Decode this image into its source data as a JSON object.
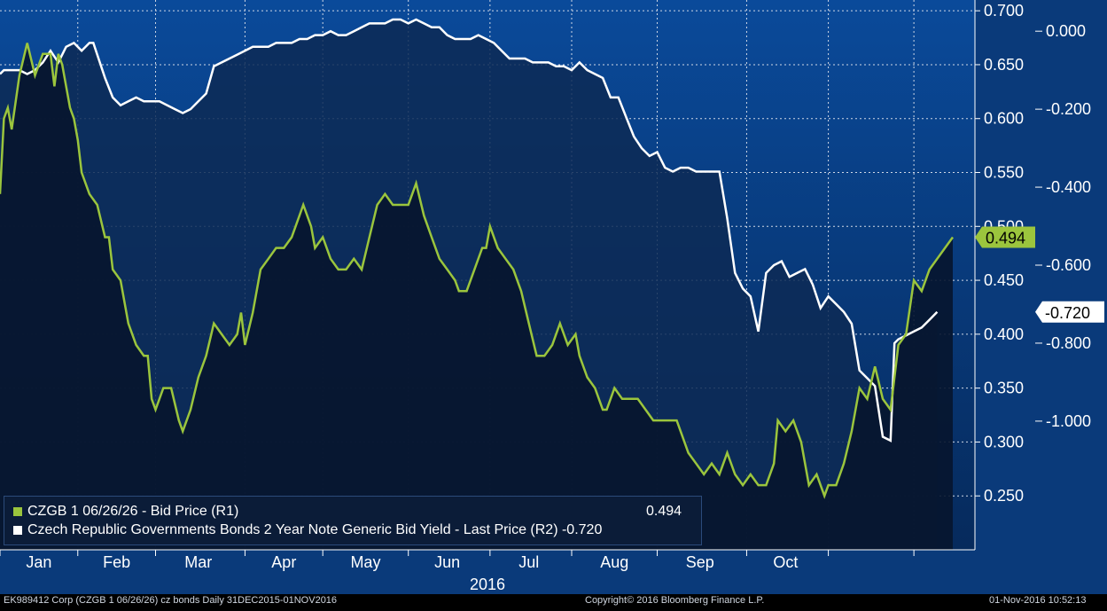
{
  "chart_data": {
    "type": "line",
    "title": "",
    "x_range": [
      "2015-12-31",
      "2016-11-01"
    ],
    "year_label": "2016",
    "months": [
      "Jan",
      "Feb",
      "Mar",
      "Apr",
      "May",
      "Jun",
      "Jul",
      "Aug",
      "Sep",
      "Oct"
    ],
    "axis_r1": {
      "ticks": [
        "0.700",
        "0.650",
        "0.600",
        "0.550",
        "0.500",
        "0.450",
        "0.400",
        "0.350",
        "0.300",
        "0.250"
      ],
      "range": [
        0.2,
        0.71
      ]
    },
    "axis_r2": {
      "ticks": [
        "0.000",
        "-0.200",
        "-0.400",
        "-0.600",
        "-0.800",
        "-1.000"
      ],
      "range": [
        -1.33,
        0.08
      ]
    },
    "grid": true,
    "legend_position": "bottom-left",
    "series": [
      {
        "name": "CZGB 1 06/26/26 - Bid Price (R1)",
        "axis": "R1",
        "color": "#9bc53d",
        "last_label": "0.494",
        "values": [
          [
            1,
            0.53
          ],
          [
            2,
            0.6
          ],
          [
            3,
            0.61
          ],
          [
            4,
            0.59
          ],
          [
            6,
            0.64
          ],
          [
            8,
            0.67
          ],
          [
            10,
            0.64
          ],
          [
            12,
            0.66
          ],
          [
            14,
            0.66
          ],
          [
            15,
            0.63
          ],
          [
            16,
            0.66
          ],
          [
            17,
            0.65
          ],
          [
            18,
            0.63
          ],
          [
            19,
            0.61
          ],
          [
            20,
            0.6
          ],
          [
            21,
            0.58
          ],
          [
            22,
            0.55
          ],
          [
            24,
            0.53
          ],
          [
            26,
            0.52
          ],
          [
            28,
            0.49
          ],
          [
            29,
            0.49
          ],
          [
            30,
            0.46
          ],
          [
            32,
            0.45
          ],
          [
            34,
            0.41
          ],
          [
            36,
            0.39
          ],
          [
            38,
            0.38
          ],
          [
            39,
            0.38
          ],
          [
            40,
            0.34
          ],
          [
            41,
            0.33
          ],
          [
            43,
            0.35
          ],
          [
            45,
            0.35
          ],
          [
            47,
            0.32
          ],
          [
            48,
            0.31
          ],
          [
            50,
            0.33
          ],
          [
            52,
            0.36
          ],
          [
            54,
            0.38
          ],
          [
            56,
            0.41
          ],
          [
            58,
            0.4
          ],
          [
            60,
            0.39
          ],
          [
            62,
            0.4
          ],
          [
            63,
            0.42
          ],
          [
            64,
            0.39
          ],
          [
            66,
            0.42
          ],
          [
            68,
            0.46
          ],
          [
            70,
            0.47
          ],
          [
            72,
            0.48
          ],
          [
            74,
            0.48
          ],
          [
            76,
            0.49
          ],
          [
            78,
            0.51
          ],
          [
            79,
            0.52
          ],
          [
            81,
            0.5
          ],
          [
            82,
            0.48
          ],
          [
            84,
            0.49
          ],
          [
            86,
            0.47
          ],
          [
            88,
            0.46
          ],
          [
            90,
            0.46
          ],
          [
            92,
            0.47
          ],
          [
            94,
            0.46
          ],
          [
            96,
            0.49
          ],
          [
            98,
            0.52
          ],
          [
            100,
            0.53
          ],
          [
            102,
            0.52
          ],
          [
            104,
            0.52
          ],
          [
            106,
            0.52
          ],
          [
            108,
            0.54
          ],
          [
            110,
            0.51
          ],
          [
            112,
            0.49
          ],
          [
            114,
            0.47
          ],
          [
            116,
            0.46
          ],
          [
            118,
            0.45
          ],
          [
            119,
            0.44
          ],
          [
            121,
            0.44
          ],
          [
            123,
            0.46
          ],
          [
            125,
            0.48
          ],
          [
            126,
            0.48
          ],
          [
            127,
            0.5
          ],
          [
            129,
            0.48
          ],
          [
            131,
            0.47
          ],
          [
            133,
            0.46
          ],
          [
            135,
            0.44
          ],
          [
            137,
            0.41
          ],
          [
            139,
            0.38
          ],
          [
            141,
            0.38
          ],
          [
            143,
            0.39
          ],
          [
            145,
            0.41
          ],
          [
            147,
            0.39
          ],
          [
            149,
            0.4
          ],
          [
            150,
            0.38
          ],
          [
            152,
            0.36
          ],
          [
            154,
            0.35
          ],
          [
            156,
            0.33
          ],
          [
            157,
            0.33
          ],
          [
            159,
            0.35
          ],
          [
            161,
            0.34
          ],
          [
            163,
            0.34
          ],
          [
            165,
            0.34
          ],
          [
            167,
            0.33
          ],
          [
            169,
            0.32
          ],
          [
            171,
            0.32
          ],
          [
            173,
            0.32
          ],
          [
            175,
            0.32
          ],
          [
            176,
            0.31
          ],
          [
            178,
            0.29
          ],
          [
            180,
            0.28
          ],
          [
            182,
            0.27
          ],
          [
            184,
            0.28
          ],
          [
            186,
            0.27
          ],
          [
            188,
            0.29
          ],
          [
            190,
            0.27
          ],
          [
            192,
            0.26
          ],
          [
            194,
            0.27
          ],
          [
            196,
            0.26
          ],
          [
            198,
            0.26
          ],
          [
            200,
            0.28
          ],
          [
            201,
            0.32
          ],
          [
            203,
            0.31
          ],
          [
            205,
            0.32
          ],
          [
            207,
            0.3
          ],
          [
            209,
            0.26
          ],
          [
            211,
            0.27
          ],
          [
            213,
            0.25
          ],
          [
            214,
            0.26
          ],
          [
            216,
            0.26
          ],
          [
            218,
            0.28
          ],
          [
            220,
            0.31
          ],
          [
            222,
            0.35
          ],
          [
            224,
            0.34
          ],
          [
            226,
            0.37
          ],
          [
            228,
            0.34
          ],
          [
            230,
            0.33
          ],
          [
            232,
            0.39
          ],
          [
            234,
            0.4
          ],
          [
            236,
            0.45
          ],
          [
            238,
            0.44
          ],
          [
            240,
            0.46
          ],
          [
            242,
            0.47
          ],
          [
            244,
            0.48
          ],
          [
            246,
            0.49
          ]
        ]
      },
      {
        "name": "Czech Republic Governments Bonds 2 Year Note Generic Bid Yield - Last Price (R2)",
        "axis": "R2",
        "color": "#ffffff",
        "last_label": "-0.720",
        "values": [
          [
            1,
            -0.11
          ],
          [
            2,
            -0.1
          ],
          [
            4,
            -0.1
          ],
          [
            6,
            -0.1
          ],
          [
            8,
            -0.11
          ],
          [
            10,
            -0.1
          ],
          [
            12,
            -0.08
          ],
          [
            14,
            -0.05
          ],
          [
            16,
            -0.08
          ],
          [
            18,
            -0.04
          ],
          [
            20,
            -0.03
          ],
          [
            22,
            -0.05
          ],
          [
            24,
            -0.03
          ],
          [
            25,
            -0.03
          ],
          [
            26,
            -0.06
          ],
          [
            28,
            -0.12
          ],
          [
            30,
            -0.17
          ],
          [
            32,
            -0.19
          ],
          [
            34,
            -0.18
          ],
          [
            36,
            -0.17
          ],
          [
            38,
            -0.18
          ],
          [
            40,
            -0.18
          ],
          [
            42,
            -0.18
          ],
          [
            44,
            -0.19
          ],
          [
            46,
            -0.2
          ],
          [
            48,
            -0.21
          ],
          [
            50,
            -0.2
          ],
          [
            52,
            -0.18
          ],
          [
            54,
            -0.16
          ],
          [
            56,
            -0.09
          ],
          [
            58,
            -0.08
          ],
          [
            60,
            -0.07
          ],
          [
            62,
            -0.06
          ],
          [
            64,
            -0.05
          ],
          [
            66,
            -0.04
          ],
          [
            68,
            -0.04
          ],
          [
            70,
            -0.04
          ],
          [
            72,
            -0.03
          ],
          [
            74,
            -0.03
          ],
          [
            76,
            -0.03
          ],
          [
            78,
            -0.02
          ],
          [
            80,
            -0.02
          ],
          [
            82,
            -0.01
          ],
          [
            84,
            -0.01
          ],
          [
            86,
            0.0
          ],
          [
            88,
            -0.01
          ],
          [
            90,
            -0.01
          ],
          [
            92,
            0.0
          ],
          [
            94,
            0.01
          ],
          [
            96,
            0.02
          ],
          [
            98,
            0.02
          ],
          [
            100,
            0.02
          ],
          [
            102,
            0.03
          ],
          [
            104,
            0.03
          ],
          [
            106,
            0.02
          ],
          [
            108,
            0.03
          ],
          [
            110,
            0.02
          ],
          [
            112,
            0.01
          ],
          [
            114,
            0.01
          ],
          [
            116,
            -0.01
          ],
          [
            118,
            -0.02
          ],
          [
            120,
            -0.02
          ],
          [
            122,
            -0.02
          ],
          [
            124,
            -0.01
          ],
          [
            126,
            -0.02
          ],
          [
            128,
            -0.03
          ],
          [
            130,
            -0.05
          ],
          [
            132,
            -0.07
          ],
          [
            134,
            -0.07
          ],
          [
            136,
            -0.07
          ],
          [
            138,
            -0.08
          ],
          [
            140,
            -0.08
          ],
          [
            142,
            -0.08
          ],
          [
            144,
            -0.09
          ],
          [
            146,
            -0.09
          ],
          [
            148,
            -0.1
          ],
          [
            150,
            -0.08
          ],
          [
            152,
            -0.1
          ],
          [
            154,
            -0.11
          ],
          [
            156,
            -0.12
          ],
          [
            158,
            -0.17
          ],
          [
            160,
            -0.17
          ],
          [
            162,
            -0.22
          ],
          [
            164,
            -0.27
          ],
          [
            166,
            -0.3
          ],
          [
            168,
            -0.32
          ],
          [
            170,
            -0.31
          ],
          [
            172,
            -0.35
          ],
          [
            174,
            -0.36
          ],
          [
            176,
            -0.35
          ],
          [
            178,
            -0.35
          ],
          [
            180,
            -0.36
          ],
          [
            182,
            -0.36
          ],
          [
            184,
            -0.36
          ],
          [
            186,
            -0.36
          ],
          [
            188,
            -0.48
          ],
          [
            190,
            -0.62
          ],
          [
            192,
            -0.66
          ],
          [
            194,
            -0.68
          ],
          [
            196,
            -0.77
          ],
          [
            198,
            -0.62
          ],
          [
            200,
            -0.6
          ],
          [
            202,
            -0.59
          ],
          [
            204,
            -0.63
          ],
          [
            206,
            -0.62
          ],
          [
            208,
            -0.61
          ],
          [
            210,
            -0.65
          ],
          [
            212,
            -0.71
          ],
          [
            214,
            -0.68
          ],
          [
            216,
            -0.7
          ],
          [
            218,
            -0.72
          ],
          [
            220,
            -0.75
          ],
          [
            222,
            -0.87
          ],
          [
            224,
            -0.89
          ],
          [
            226,
            -0.91
          ],
          [
            228,
            -1.04
          ],
          [
            230,
            -1.05
          ],
          [
            231,
            -0.8
          ],
          [
            232,
            -0.79
          ],
          [
            234,
            -0.78
          ],
          [
            236,
            -0.77
          ],
          [
            238,
            -0.76
          ],
          [
            240,
            -0.74
          ],
          [
            242,
            -0.72
          ]
        ]
      }
    ]
  },
  "legend": {
    "r1_label": "CZGB 1 06/26/26 - Bid Price (R1)",
    "r1_value": "0.494",
    "r2_label": "Czech Republic Governments Bonds 2 Year Note Generic Bid Yield - Last Price (R2)",
    "r2_value": "-0.720"
  },
  "footer": {
    "left": "EK989412 Corp (CZGB 1 06/26/26) cz bonds  Daily 31DEC2015-01NOV2016",
    "center": "Copyright© 2016 Bloomberg Finance L.P.",
    "right": "01-Nov-2016 10:52:13"
  },
  "colors": {
    "bg_top": "#0a4a9a",
    "bg_bottom": "#062a5c",
    "grid": "#d0d8e6",
    "r1_line": "#9bc53d",
    "r2_line": "#ffffff"
  }
}
